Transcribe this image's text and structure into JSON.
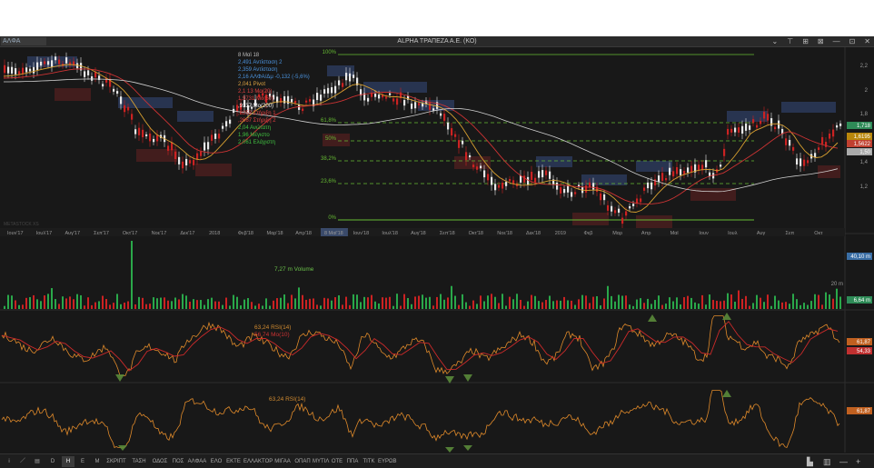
{
  "window": {
    "symbol": "ΑΛΦΑ",
    "title": "ALPHA ΤΡΑΠΕΖΑ Α.Ε. (ΚΟ)",
    "controls": [
      "⌄",
      "⊤",
      "⊞",
      "⊠",
      "—",
      "⊡",
      "✕"
    ]
  },
  "price_panel": {
    "info_lines": [
      {
        "text": "8 Μαϊ 18",
        "color": "#bbbbbb"
      },
      {
        "text": "2,491 Αντίσταση 2",
        "color": "#4a90d9"
      },
      {
        "text": "2,359 Αντίσταση",
        "color": "#4a90d9"
      },
      {
        "text": "2,16 ΑΛΦΑ/Δμ -0,132 (-5,6%)",
        "color": "#4a90d9"
      },
      {
        "text": "2,041 Pivot",
        "color": "#d9a040"
      },
      {
        "text": "2,1 13 Mo(20)",
        "color": "#e04040"
      },
      {
        "text": "1,9731 Mo(50)",
        "color": "#e04040"
      },
      {
        "text": ",9137 Mo(200)",
        "color": "#ffffff"
      },
      {
        "text": ",8253 Στήριξη 1",
        "color": "#e04040"
      },
      {
        "text": ",2667 Στήριξη 2",
        "color": "#e04040"
      },
      {
        "text": "2,04 Ανώτατη",
        "color": "#40c040"
      },
      {
        "text": "1,96 Μέγιστο",
        "color": "#40c040"
      },
      {
        "text": "2,061 Ελάχιστη",
        "color": "#40c040"
      }
    ],
    "fib_labels": [
      "100%",
      "61,8%",
      "50%",
      "38,2%",
      "23,6%",
      "0%"
    ],
    "y_ticks": [
      "2,2",
      "2",
      "1,8",
      "1,6",
      "1,4",
      "1,2"
    ],
    "right_labels": [
      {
        "text": "1,718",
        "color": "#2e8b57"
      },
      {
        "text": "1,6195",
        "color": "#b8860b"
      },
      {
        "text": "1,5622",
        "color": "#c04030"
      },
      {
        "text": "1,50",
        "color": "#aaaaaa"
      }
    ],
    "x_ticks": [
      "Ιουν'17",
      "Ιουλ'17",
      "Αυγ'17",
      "Σεπ'17",
      "Οκτ'17",
      "Νοε'17",
      "Δεκ'17",
      "2018",
      "Φεβ'18",
      "Μαρ'18",
      "Απρ'18",
      "8 Μαϊ'18",
      "Ιουν'18",
      "Ιουλ'18",
      "Αυγ'18",
      "Σεπ'18",
      "Οκτ'18",
      "Νοε'18",
      "Δεκ'18",
      "2019",
      "Φεβ",
      "Μαρ",
      "Απρ",
      "Μαϊ",
      "Ιουν",
      "Ιουλ",
      "Αυγ",
      "Σεπ",
      "Οκτ"
    ],
    "watermark": "METASTOCK XS"
  },
  "volume_panel": {
    "label": "7,27 m Volume",
    "y_ticks": [
      "20 m"
    ],
    "right_labels": [
      {
        "text": "40,10 m",
        "color": "#3a6ea5"
      },
      {
        "text": "6,64 m",
        "color": "#2e8b57"
      }
    ]
  },
  "rsi_ma_panel": {
    "label1": "63,24 RSI(14)",
    "label2": "56,74 Mo(10)",
    "right_labels": [
      {
        "text": "61,87",
        "color": "#c06020"
      },
      {
        "text": "54,33",
        "color": "#c03030"
      }
    ]
  },
  "rsi_panel": {
    "label": "63,24 RSI(14)",
    "right_labels": [
      {
        "text": "61,87",
        "color": "#c06020"
      }
    ]
  },
  "bottom_toolbar": {
    "items": [
      "i",
      "／",
      "▤",
      "D",
      "H",
      "E",
      "M",
      "ΣΚΡΙΠΤ",
      "ΤΑΣΗ",
      "ΟΔΟΣ",
      "ΠΟΣ",
      "ΑΛΦΑΑ",
      "ΕΛΟ",
      "ΕΚΤΕ",
      "ΕΛΛΑΚΤΟΡ",
      "ΜΙΓΑΑ",
      "ΟΠΑΠ",
      "ΜΥΤΙΛ",
      "ΟΤΕ",
      "ΠΠΑ",
      "ΤΙΤΚ",
      "ΕΥΡΩΒ"
    ],
    "active_index": 4,
    "right_icons": [
      "bar-chart-icon",
      "bars-icon",
      "minimize-icon",
      "plus-icon"
    ],
    "right_glyphs": [
      "▙",
      "▥",
      "—",
      "+"
    ]
  },
  "colors": {
    "background": "#181818",
    "bull": "#e8e8e8",
    "bear": "#cc2222",
    "resistance_band": "#2b3a5a",
    "support_band": "#4a1f1f",
    "fib_line": "#66bb33",
    "rsi_line": "#e08a2a",
    "ma_line": "#cc2a2a"
  }
}
